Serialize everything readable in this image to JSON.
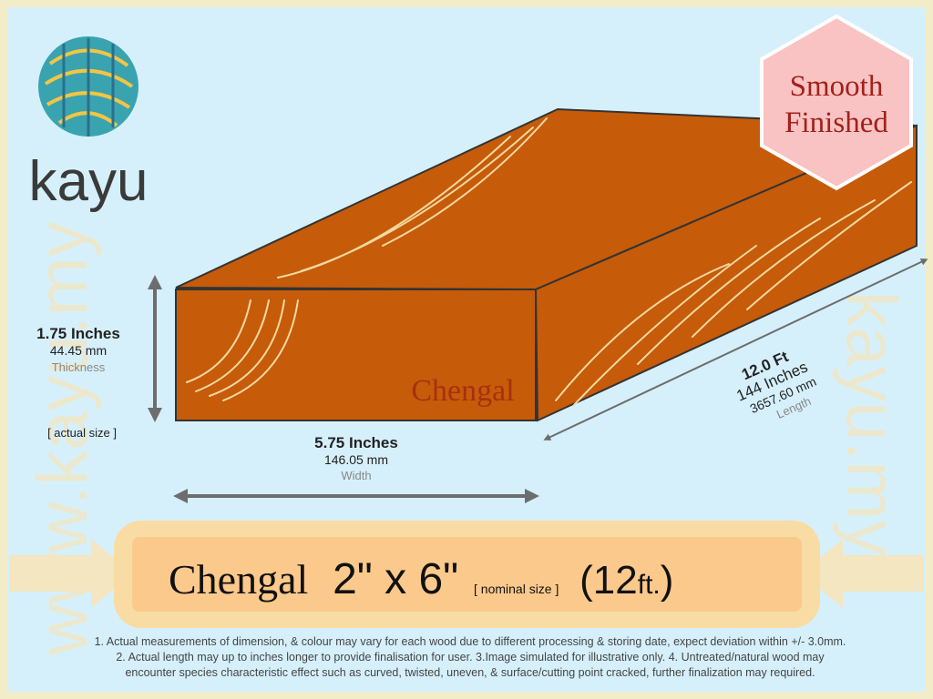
{
  "logo": {
    "name": "kayu"
  },
  "badge": {
    "line1": "Smooth",
    "line2": "Finished"
  },
  "watermark": {
    "left": "www.kayu.my",
    "right": "kayu.my"
  },
  "wood_label": "Chengal",
  "thickness": {
    "imperial": "1.75 Inches",
    "metric": "44.45 mm",
    "label": "Thickness",
    "note": "[ actual size ]"
  },
  "width": {
    "imperial": "5.75 Inches",
    "metric": "146.05 mm",
    "label": "Width"
  },
  "length": {
    "feet": "12.0 Ft",
    "imperial": "144 Inches",
    "metric": "3657.60 mm",
    "label": "Length"
  },
  "banner": {
    "species": "Chengal",
    "size": "2\" x 6\"",
    "size_note": "[ nominal size ]",
    "length_open": "(12",
    "length_unit": "ft.",
    "length_close": ")"
  },
  "footnote": {
    "lines": [
      "1. Actual measurements of dimension, & colour may vary for each wood due to different processing & storing date, expect deviation within +/- 3.0mm.",
      "2. Actual length may up to inches longer to provide finalisation for user. 3.Image simulated for illustrative only. 4. Untreated/natural wood may",
      "encounter species characteristic effect such as curved, twisted, uneven, & surface/cutting point cracked, further finalization may required."
    ]
  }
}
